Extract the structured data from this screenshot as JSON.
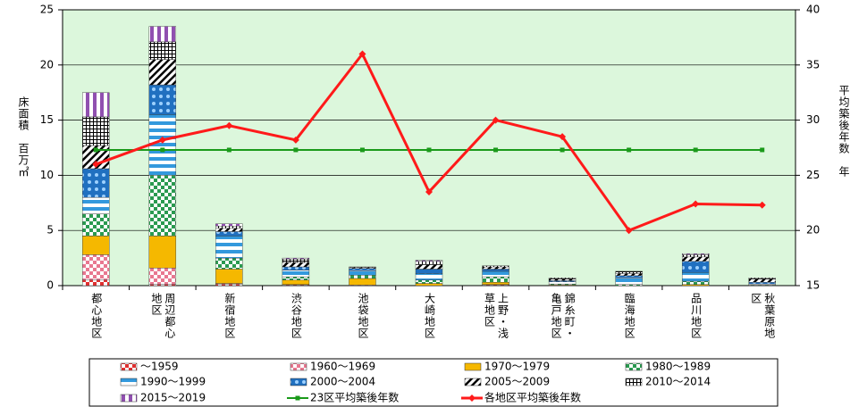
{
  "chart_data": {
    "type": "bar",
    "stacked": true,
    "y_label": "床面積　百万㎡",
    "y2_label": "平均築後年数　年",
    "categories": [
      "都心地区",
      "周辺都心地区",
      "新宿地区",
      "渋谷地区",
      "池袋地区",
      "大崎地区",
      "上野・浅草地区",
      "錦糸町・亀戸地区",
      "臨海地区",
      "品川地区",
      "秋葉原地区"
    ],
    "ylim": [
      0,
      25
    ],
    "yticks": [
      0,
      5,
      10,
      15,
      20,
      25
    ],
    "y2lim": [
      15,
      40
    ],
    "y2ticks": [
      15,
      20,
      25,
      30,
      35,
      40
    ],
    "grid": true,
    "background": "#dcf7dc",
    "series": [
      {
        "name": "～1959",
        "color": "#e03030",
        "values": [
          0.5,
          0.1,
          0.1,
          0.05,
          0,
          0,
          0.05,
          0,
          0,
          0,
          0
        ]
      },
      {
        "name": "1960～1969",
        "color": "#e87890",
        "values": [
          2.3,
          1.5,
          0.1,
          0.05,
          0.05,
          0,
          0.05,
          0,
          0,
          0,
          0
        ]
      },
      {
        "name": "1970～1979",
        "color": "#f5b800",
        "values": [
          1.7,
          2.9,
          1.3,
          0.4,
          0.6,
          0.2,
          0.2,
          0.05,
          0,
          0.1,
          0
        ]
      },
      {
        "name": "1980～1989",
        "color": "#2a9a50",
        "values": [
          2.0,
          5.5,
          1.0,
          0.3,
          0.3,
          0.3,
          0.5,
          0.1,
          0.1,
          0.3,
          0.05
        ]
      },
      {
        "name": "1990～1999",
        "color": "#3399dd",
        "values": [
          1.5,
          5.5,
          2.0,
          0.6,
          0.4,
          0.6,
          0.5,
          0.2,
          0.6,
          0.8,
          0.1
        ]
      },
      {
        "name": "2000～2004",
        "color": "#2070c0",
        "values": [
          2.6,
          2.7,
          0.4,
          0.3,
          0.2,
          0.4,
          0.2,
          0.1,
          0.2,
          1.0,
          0.15
        ]
      },
      {
        "name": "2005～2009",
        "color": "#000000",
        "values": [
          2.1,
          2.3,
          0.3,
          0.4,
          0.1,
          0.4,
          0.2,
          0.15,
          0.2,
          0.4,
          0.3
        ]
      },
      {
        "name": "2010～2014",
        "color": "#000000",
        "values": [
          2.6,
          1.6,
          0.2,
          0.3,
          0.05,
          0.3,
          0.1,
          0.1,
          0.2,
          0.2,
          0.1
        ]
      },
      {
        "name": "2015～2019",
        "color": "#9050b0",
        "values": [
          2.2,
          1.4,
          0.2,
          0.1,
          0,
          0.1,
          0,
          0,
          0,
          0.1,
          0
        ]
      },
      {
        "name": "23区平均築後年数",
        "type": "line",
        "axis": "y2",
        "color": "#1a9a1a",
        "values": [
          27.3,
          27.3,
          27.3,
          27.3,
          27.3,
          27.3,
          27.3,
          27.3,
          27.3,
          27.3,
          27.3
        ]
      },
      {
        "name": "各地区平均築後年数",
        "type": "line",
        "axis": "y2",
        "color": "#ff1a1a",
        "values": [
          26.0,
          28.2,
          29.5,
          28.2,
          36.0,
          23.5,
          30.0,
          28.5,
          20.0,
          22.4,
          22.3
        ]
      }
    ]
  }
}
